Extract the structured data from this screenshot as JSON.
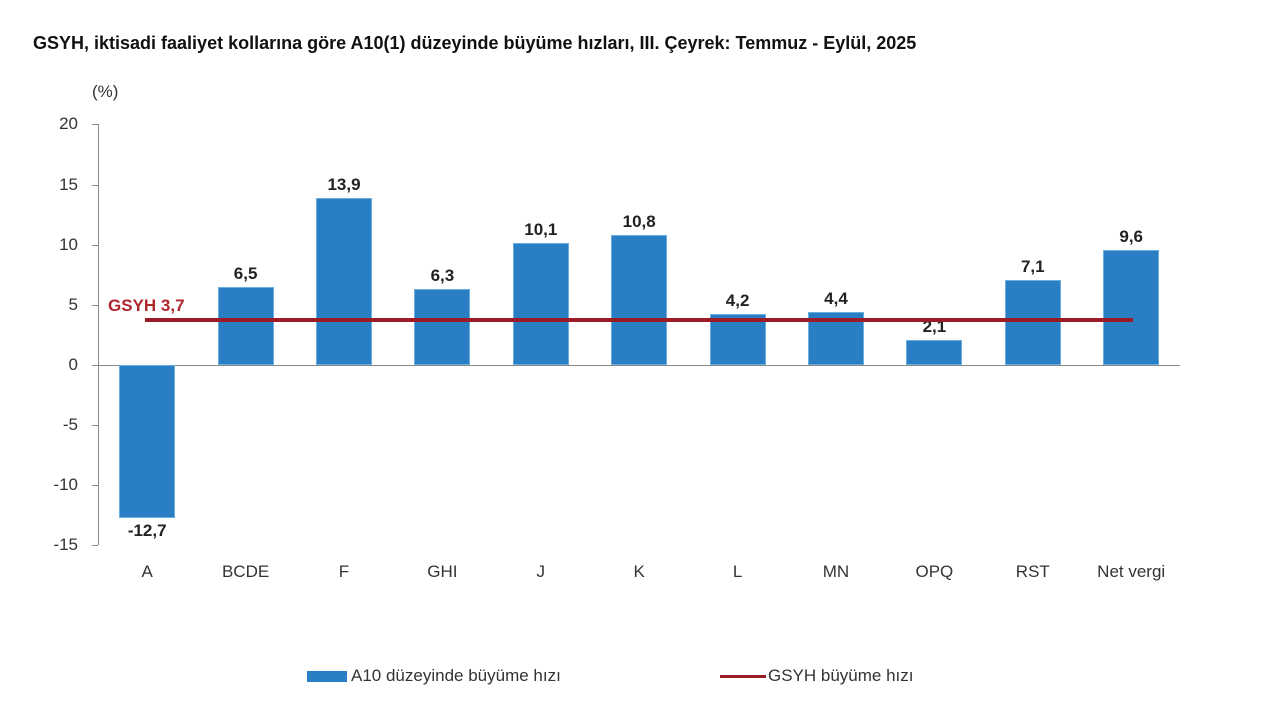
{
  "header": {
    "title": "GSYH, iktisadi faaliyet kollarına göre A10(1) düzeyinde büyüme hızları, III. Çeyrek: Temmuz - Eylül, 2025"
  },
  "axis": {
    "unit": "(%)",
    "yticks": [
      "20",
      "15",
      "10",
      "5",
      "0",
      "-5",
      "-10",
      "-15"
    ]
  },
  "annotation": {
    "gsyh_label": "GSYH 3,7"
  },
  "legend": {
    "bar_label": "A10 düzeyinde büyüme hızı",
    "line_label": "GSYH büyüme hızı"
  },
  "bars": [
    {
      "category": "A",
      "label": "-12,7"
    },
    {
      "category": "BCDE",
      "label": "6,5"
    },
    {
      "category": "F",
      "label": "13,9"
    },
    {
      "category": "GHI",
      "label": "6,3"
    },
    {
      "category": "J",
      "label": "10,1"
    },
    {
      "category": "K",
      "label": "10,8"
    },
    {
      "category": "L",
      "label": "4,2"
    },
    {
      "category": "MN",
      "label": "4,4"
    },
    {
      "category": "OPQ",
      "label": "2,1"
    },
    {
      "category": "RST",
      "label": "7,1"
    },
    {
      "category": "Net vergi",
      "label": "9,6"
    }
  ],
  "colors": {
    "bar": "#2a7ec4",
    "line": "#9b1c24",
    "gsyh_label": "#b0262e"
  },
  "chart_data": {
    "type": "bar",
    "title": "GSYH, iktisadi faaliyet kollarına göre A10(1) düzeyinde büyüme hızları, III. Çeyrek: Temmuz - Eylül, 2025",
    "xlabel": "",
    "ylabel": "(%)",
    "ylim": [
      -15,
      20
    ],
    "yticks": [
      -15,
      -10,
      -5,
      0,
      5,
      10,
      15,
      20
    ],
    "grid": false,
    "legend_position": "bottom",
    "categories": [
      "A",
      "BCDE",
      "F",
      "GHI",
      "J",
      "K",
      "L",
      "MN",
      "OPQ",
      "RST",
      "Net vergi"
    ],
    "series": [
      {
        "name": "A10 düzeyinde büyüme hızı",
        "type": "bar",
        "color": "#2a7ec4",
        "values": [
          -12.7,
          6.5,
          13.9,
          6.3,
          10.1,
          10.8,
          4.2,
          4.4,
          2.1,
          7.1,
          9.6
        ]
      },
      {
        "name": "GSYH büyüme hızı",
        "type": "line",
        "color": "#9b1c24",
        "values": [
          3.7,
          3.7,
          3.7,
          3.7,
          3.7,
          3.7,
          3.7,
          3.7,
          3.7,
          3.7,
          3.7
        ]
      }
    ],
    "annotations": [
      {
        "text": "GSYH 3,7",
        "y": 3.7
      }
    ]
  }
}
